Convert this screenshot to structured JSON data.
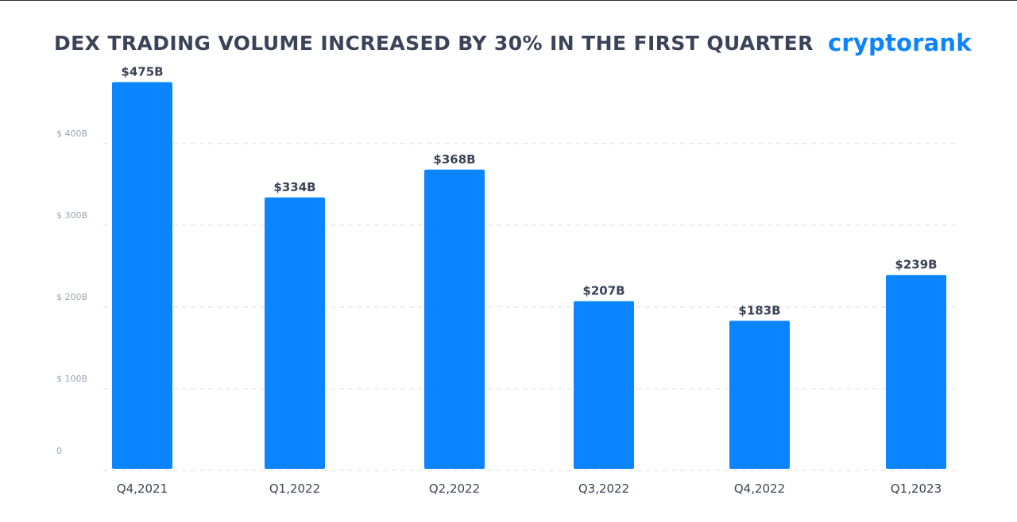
{
  "header": {
    "title": "DEX TRADING VOLUME INCREASED BY 30% IN THE FIRST QUARTER",
    "brand": "cryptorank"
  },
  "colors": {
    "bar": "#0a84ff",
    "grid": "#dadde3",
    "title": "#3a4358",
    "brand": "#0a84ff"
  },
  "chart_data": {
    "type": "bar",
    "title": "DEX TRADING VOLUME INCREASED BY 30% IN THE FIRST QUARTER",
    "xlabel": "",
    "ylabel": "",
    "categories": [
      "Q4,2021",
      "Q1,2022",
      "Q2,2022",
      "Q3,2022",
      "Q4,2022",
      "Q1,2023"
    ],
    "values": [
      475,
      334,
      368,
      207,
      183,
      239
    ],
    "value_labels": [
      "$475B",
      "$334B",
      "$368B",
      "$207B",
      "$183B",
      "$239B"
    ],
    "y_ticks": [
      0,
      100,
      200,
      300,
      400
    ],
    "y_tick_labels": [
      "0",
      "$ 100B",
      "$ 200B",
      "$ 300B",
      "$ 400B"
    ],
    "ylim": [
      0,
      500
    ],
    "grid": true,
    "legend": "none"
  }
}
